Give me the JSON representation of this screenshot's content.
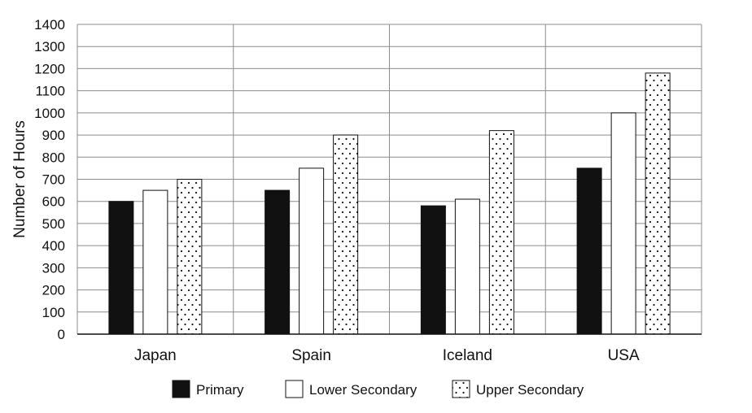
{
  "chart_data": {
    "type": "bar",
    "title": "",
    "xlabel": "",
    "ylabel": "Number of Hours",
    "ylim": [
      0,
      1400
    ],
    "yticks": [
      0,
      100,
      200,
      300,
      400,
      500,
      600,
      700,
      800,
      900,
      1000,
      1100,
      1200,
      1300,
      1400
    ],
    "grid": "on",
    "legend_position": "bottom",
    "categories": [
      "Japan",
      "Spain",
      "Iceland",
      "USA"
    ],
    "series": [
      {
        "name": "Primary",
        "values": [
          600,
          650,
          580,
          750
        ],
        "fill": "#111111",
        "pattern": "solid"
      },
      {
        "name": "Lower Secondary",
        "values": [
          650,
          750,
          610,
          1000
        ],
        "fill": "#ffffff",
        "pattern": "none"
      },
      {
        "name": "Upper Secondary",
        "values": [
          700,
          900,
          920,
          1180
        ],
        "fill": "#ffffff",
        "pattern": "dots"
      }
    ]
  }
}
